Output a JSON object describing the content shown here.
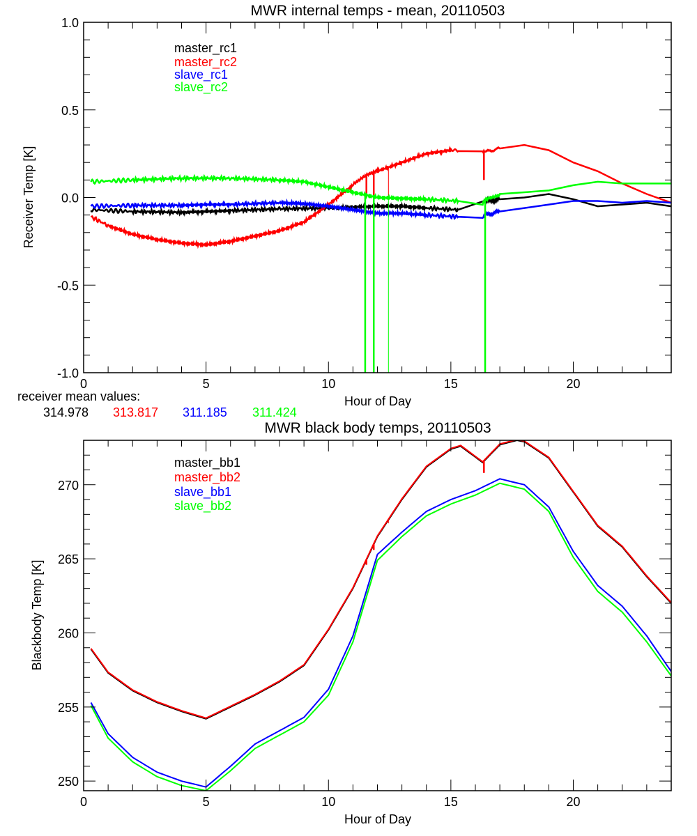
{
  "colors": {
    "black": "#000000",
    "red": "#ff0000",
    "blue": "#0000ff",
    "green": "#00ff00"
  },
  "receiver_means": {
    "label": "receiver mean values:",
    "values": [
      {
        "text": "314.978",
        "color": "#000000"
      },
      {
        "text": "313.817",
        "color": "#ff0000"
      },
      {
        "text": "311.185",
        "color": "#0000ff"
      },
      {
        "text": "311.424",
        "color": "#00ff00"
      }
    ]
  },
  "chart_data": [
    {
      "type": "line",
      "title": "MWR internal temps - mean, 20110503",
      "xlabel": "Hour of Day",
      "ylabel": "Receiver Temp [K]",
      "xlim": [
        0,
        24
      ],
      "ylim": [
        -1.0,
        1.0
      ],
      "xticks": [
        "0",
        "5",
        "10",
        "15",
        "20"
      ],
      "xtick_values": [
        0,
        5,
        10,
        15,
        20
      ],
      "yticks": [
        "-1.0",
        "-0.5",
        "0.0",
        "0.5",
        "1.0"
      ],
      "ytick_values": [
        -1.0,
        -0.5,
        0.0,
        0.5,
        1.0
      ],
      "xminor": 1,
      "yminor": 0.1,
      "legend_position": "top-left",
      "series": [
        {
          "name": "master_rc1",
          "color": "#000000",
          "x": [
            0.3,
            2,
            4,
            5,
            6,
            8,
            10,
            11,
            12,
            13,
            14,
            15.3,
            16.4,
            17,
            18,
            19,
            20,
            21,
            22,
            23,
            24
          ],
          "y": [
            -0.07,
            -0.08,
            -0.085,
            -0.08,
            -0.075,
            -0.065,
            -0.06,
            -0.055,
            -0.05,
            -0.05,
            -0.06,
            -0.07,
            -0.02,
            -0.01,
            0.0,
            0.02,
            -0.01,
            -0.05,
            -0.04,
            -0.03,
            -0.05
          ]
        },
        {
          "name": "master_rc2",
          "color": "#ff0000",
          "x": [
            0.3,
            1,
            2,
            3,
            4,
            5,
            6,
            7,
            8,
            9,
            10,
            11,
            11.5,
            12,
            13,
            14,
            15,
            15.3,
            16.3,
            16.4,
            17,
            18,
            19,
            20,
            21,
            22,
            23,
            24
          ],
          "y": [
            -0.11,
            -0.16,
            -0.21,
            -0.24,
            -0.26,
            -0.27,
            -0.25,
            -0.22,
            -0.19,
            -0.14,
            -0.04,
            0.07,
            0.12,
            0.15,
            0.2,
            0.25,
            0.27,
            0.265,
            0.26,
            0.26,
            0.28,
            0.3,
            0.27,
            0.2,
            0.15,
            0.08,
            0.02,
            -0.03
          ],
          "spikes": [
            {
              "x": 11.55,
              "y": 0.0
            },
            {
              "x": 11.85,
              "y": 0.0
            },
            {
              "x": 12.45,
              "y": 0.0
            },
            {
              "x": 16.35,
              "y": 0.1
            }
          ]
        },
        {
          "name": "slave_rc1",
          "color": "#0000ff",
          "x": [
            0.3,
            2,
            4,
            5,
            6,
            8,
            9,
            10,
            11,
            12,
            13,
            14,
            15.3,
            16.3,
            16.4,
            17,
            18,
            19,
            20,
            21,
            22,
            23,
            24
          ],
          "y": [
            -0.05,
            -0.045,
            -0.045,
            -0.04,
            -0.04,
            -0.03,
            -0.035,
            -0.05,
            -0.07,
            -0.09,
            -0.09,
            -0.1,
            -0.11,
            -0.11,
            -0.1,
            -0.08,
            -0.06,
            -0.04,
            -0.02,
            -0.02,
            -0.03,
            -0.02,
            -0.03
          ]
        },
        {
          "name": "slave_rc2",
          "color": "#00ff00",
          "x": [
            0.3,
            2,
            4,
            6,
            8,
            9,
            10,
            11,
            12,
            13,
            14,
            15.3,
            16.3,
            16.5,
            17,
            18,
            19,
            20,
            21,
            22,
            23,
            24
          ],
          "y": [
            0.09,
            0.1,
            0.11,
            0.11,
            0.1,
            0.09,
            0.06,
            0.03,
            0.0,
            -0.005,
            -0.01,
            -0.02,
            -0.03,
            0.0,
            0.02,
            0.03,
            0.04,
            0.07,
            0.09,
            0.08,
            0.08,
            0.08
          ],
          "spikes": [
            {
              "x": 11.5,
              "y": -1.0
            },
            {
              "x": 11.85,
              "y": -1.0
            },
            {
              "x": 12.45,
              "y": -1.0
            },
            {
              "x": 16.4,
              "y": -1.0
            }
          ]
        }
      ]
    },
    {
      "type": "line",
      "title": "MWR black body temps, 20110503",
      "xlabel": "Hour of Day",
      "ylabel": "Blackbody Temp [K]",
      "xlim": [
        0,
        24
      ],
      "ylim": [
        249.35,
        273.0
      ],
      "xticks": [
        "0",
        "5",
        "10",
        "15",
        "20"
      ],
      "xtick_values": [
        0,
        5,
        10,
        15,
        20
      ],
      "yticks": [
        "250",
        "255",
        "260",
        "265",
        "270"
      ],
      "ytick_values": [
        250,
        255,
        260,
        265,
        270
      ],
      "xminor": 1,
      "yminor": 1,
      "legend_position": "top-left",
      "series": [
        {
          "name": "master_bb1",
          "color": "#000000",
          "x": [
            0.3,
            1,
            2,
            3,
            4,
            5,
            6,
            7,
            8,
            9,
            10,
            11,
            12,
            13,
            14,
            15,
            15.4,
            16.3,
            17,
            17.7,
            18,
            19,
            20,
            21,
            22,
            23,
            24
          ],
          "y": [
            258.9,
            257.3,
            256.1,
            255.3,
            254.7,
            254.2,
            255.0,
            255.8,
            256.7,
            257.8,
            260.2,
            263.0,
            266.5,
            269.0,
            271.2,
            272.4,
            272.6,
            271.5,
            272.7,
            273.0,
            272.9,
            271.8,
            269.5,
            267.2,
            265.8,
            263.8,
            262.0
          ]
        },
        {
          "name": "master_bb2",
          "color": "#ff0000",
          "x": [
            0.3,
            1,
            2,
            3,
            4,
            5,
            6,
            7,
            8,
            9,
            10,
            11,
            12,
            13,
            14,
            15,
            15.4,
            16.3,
            17,
            17.7,
            18,
            19,
            20,
            21,
            22,
            23,
            24
          ],
          "y": [
            258.95,
            257.35,
            256.15,
            255.35,
            254.75,
            254.25,
            255.05,
            255.85,
            256.75,
            257.85,
            260.25,
            263.05,
            266.55,
            269.05,
            271.25,
            272.45,
            272.65,
            271.55,
            272.75,
            273.05,
            272.95,
            271.85,
            269.55,
            267.25,
            265.85,
            263.85,
            262.05
          ],
          "spikes": [
            {
              "x": 11.55,
              "y": 264.6
            },
            {
              "x": 11.85,
              "y": 265.6
            },
            {
              "x": 12.45,
              "y": 267.4
            },
            {
              "x": 16.35,
              "y": 270.8
            }
          ]
        },
        {
          "name": "slave_bb1",
          "color": "#0000ff",
          "x": [
            0.3,
            1,
            2,
            3,
            4,
            5,
            6,
            7,
            8,
            9,
            10,
            11,
            12,
            13,
            14,
            15,
            16,
            17,
            18,
            19,
            20,
            21,
            22,
            23,
            24
          ],
          "y": [
            255.3,
            253.2,
            251.6,
            250.6,
            250.0,
            249.6,
            251.0,
            252.5,
            253.4,
            254.3,
            256.2,
            259.8,
            265.3,
            266.8,
            268.2,
            269.0,
            269.6,
            270.4,
            270.0,
            268.5,
            265.5,
            263.2,
            261.8,
            259.8,
            257.4
          ]
        },
        {
          "name": "slave_bb2",
          "color": "#00ff00",
          "x": [
            0.3,
            1,
            2,
            3,
            4,
            5,
            6,
            7,
            8,
            9,
            10,
            11,
            12,
            13,
            14,
            15,
            16,
            17,
            18,
            19,
            20,
            21,
            22,
            23,
            24
          ],
          "y": [
            255.1,
            252.9,
            251.3,
            250.3,
            249.7,
            249.35,
            250.7,
            252.2,
            253.1,
            254.0,
            255.8,
            259.4,
            264.9,
            266.5,
            267.9,
            268.7,
            269.3,
            270.1,
            269.7,
            268.2,
            265.1,
            262.8,
            261.4,
            259.4,
            257.1
          ]
        }
      ]
    }
  ]
}
